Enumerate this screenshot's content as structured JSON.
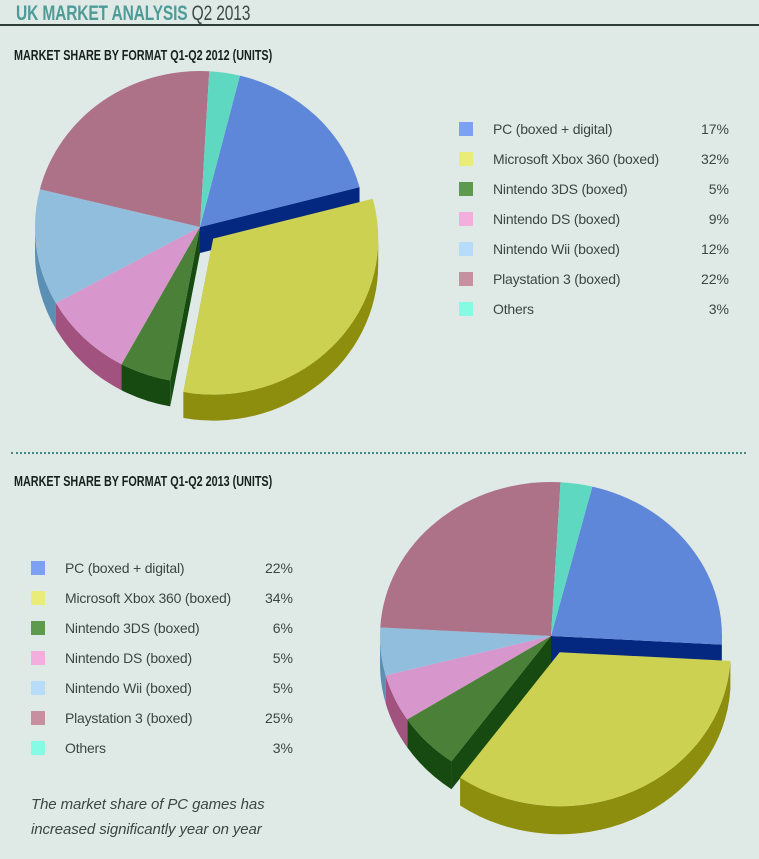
{
  "header": {
    "title_accent": "UK MARKET ANALYSIS",
    "title_rest": "Q2 2013"
  },
  "theme": {
    "background": "#dfe9e6",
    "accent_teal": "#4e9b97",
    "title_dark": "#3a4a46",
    "heading_ink": "#16201c",
    "body_text": "#3c4743",
    "header_rule": "#2e3d39",
    "divider_dots": "#4a8783"
  },
  "footnote": {
    "line1": "The market share of PC games has",
    "line2": "increased significantly year on year"
  },
  "chart_data": [
    {
      "type": "pie",
      "title": "MARKET SHARE BY FORMAT Q1-Q2 2012 (UNITS)",
      "values_are": "percent",
      "legend_position": "right",
      "style": "3d",
      "rotation_deg": 14,
      "exploded_slice": "Microsoft Xbox 360 (boxed)",
      "slices": [
        {
          "label": "PC (boxed + digital)",
          "value": 17,
          "color": "#5e87da",
          "legend_color": "#7ca0f2",
          "side_color": "#04277f",
          "rim_color": "#2b52a5"
        },
        {
          "label": "Microsoft Xbox 360 (boxed)",
          "value": 32,
          "color": "#ccd151",
          "legend_color": "#e9ec78",
          "side_color": "#8d8e0d",
          "exploded": true
        },
        {
          "label": "Nintendo 3DS (boxed)",
          "value": 5,
          "color": "#4a8038",
          "legend_color": "#5d9a4d",
          "side_color": "#174a10"
        },
        {
          "label": "Nintendo DS (boxed)",
          "value": 9,
          "color": "#d796cc",
          "legend_color": "#f3aede",
          "side_color": "#a1527e"
        },
        {
          "label": "Nintendo Wii (boxed)",
          "value": 12,
          "color": "#92bede",
          "legend_color": "#b6dcf9",
          "side_color": "#5c8fb4"
        },
        {
          "label": "Playstation 3 (boxed)",
          "value": 22,
          "color": "#ad7288",
          "legend_color": "#c790a1",
          "side_color": "#7c4a5e"
        },
        {
          "label": "Others",
          "value": 3,
          "color": "#5fd8c2",
          "legend_color": "#84fbe2",
          "side_color": "#2fa58e"
        }
      ]
    },
    {
      "type": "pie",
      "title": "MARKET SHARE BY FORMAT Q1-Q2 2013 (UNITS)",
      "values_are": "percent",
      "legend_position": "left",
      "style": "3d",
      "rotation_deg": 14,
      "exploded_slice": "Microsoft Xbox 360 (boxed)",
      "slices": [
        {
          "label": "PC (boxed + digital)",
          "value": 22,
          "color": "#5e87da",
          "legend_color": "#7ca0f2",
          "side_color": "#04277f",
          "rim_color": "#2b52a5"
        },
        {
          "label": "Microsoft Xbox 360 (boxed)",
          "value": 34,
          "color": "#ccd151",
          "legend_color": "#e9ec78",
          "side_color": "#8d8e0d",
          "exploded": true
        },
        {
          "label": "Nintendo 3DS (boxed)",
          "value": 6,
          "color": "#4a8038",
          "legend_color": "#5d9a4d",
          "side_color": "#174a10"
        },
        {
          "label": "Nintendo DS (boxed)",
          "value": 5,
          "color": "#d796cc",
          "legend_color": "#f3aede",
          "side_color": "#a1527e"
        },
        {
          "label": "Nintendo Wii (boxed)",
          "value": 5,
          "color": "#92bede",
          "legend_color": "#b6dcf9",
          "side_color": "#5c8fb4"
        },
        {
          "label": "Playstation 3 (boxed)",
          "value": 25,
          "color": "#ad7288",
          "legend_color": "#c790a1",
          "side_color": "#7c4a5e"
        },
        {
          "label": "Others",
          "value": 3,
          "color": "#5fd8c2",
          "legend_color": "#84fbe2",
          "side_color": "#2fa58e"
        }
      ]
    }
  ]
}
